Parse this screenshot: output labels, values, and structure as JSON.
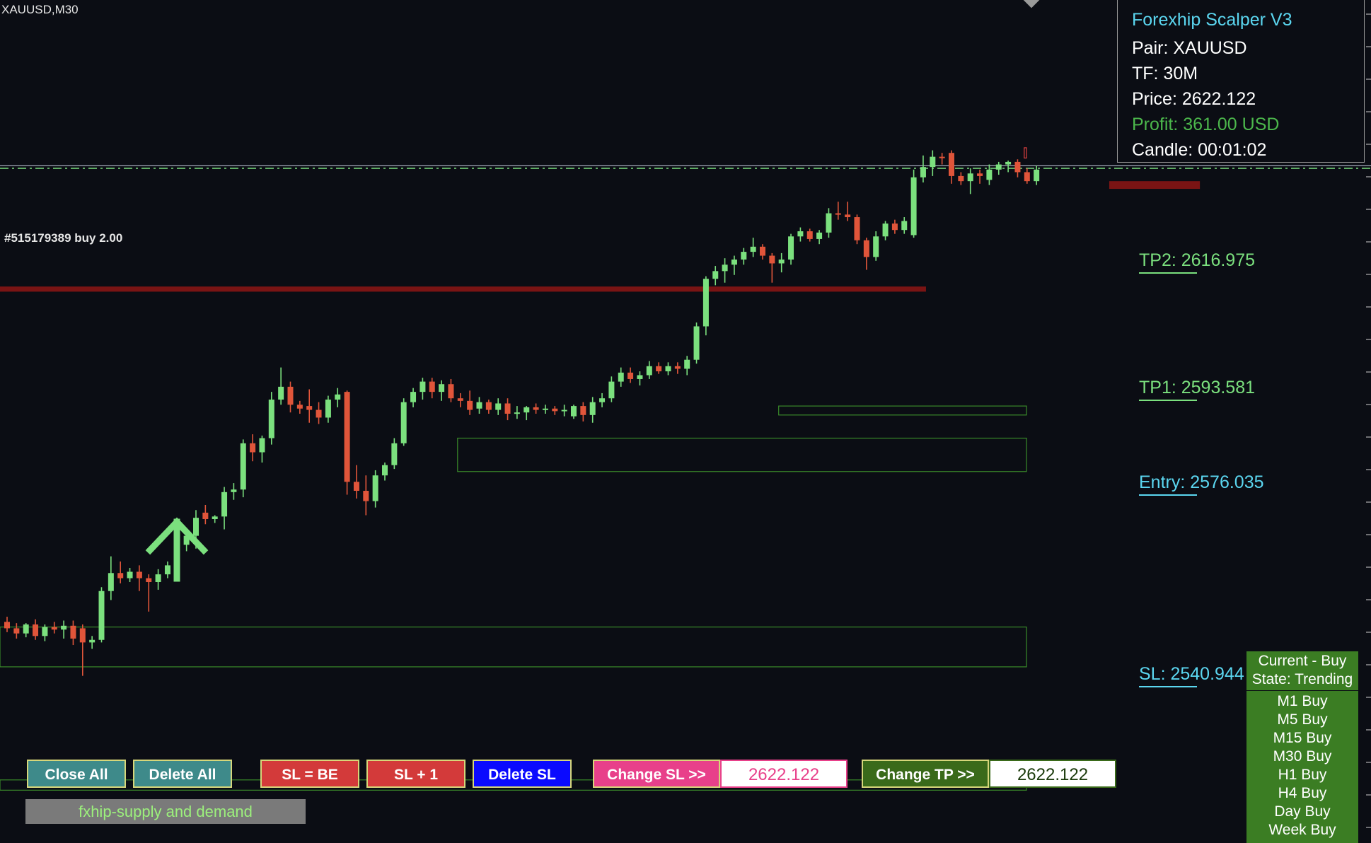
{
  "chart": {
    "symbol": "XAUUSD,M30",
    "order_label": "#515179389 buy 2.00"
  },
  "colors": {
    "background": "#0b0d14",
    "bull_candle": "#7be07e",
    "bear_candle": "#e0553a",
    "zone_green": "#3a8a2a",
    "zone_red": "#e04040",
    "supply_bar": "#7a1414",
    "entry_line": "#c9cfe0",
    "tp_line": "#7be07e",
    "cyan": "#5bd6f0",
    "green_text": "#7be07e",
    "profit_green": "#4cb84c"
  },
  "icons": {
    "buy_arrow": "up-arrow-icon"
  },
  "info_panel": {
    "title": "Forexhip Scalper V3",
    "pair": "Pair: XAUUSD",
    "timeframe": "TF: 30M",
    "price": "Price: 2622.122",
    "profit": "Profit: 361.00 USD",
    "candle": "Candle: 00:01:02"
  },
  "levels": {
    "tp2": "TP2: 2616.975",
    "tp1": "TP1: 2593.581",
    "entry": "Entry: 2576.035",
    "sl": "SL: 2540.944"
  },
  "signal": {
    "current": "Current - Buy",
    "state": "State: Trending",
    "timeframes": [
      "M1 Buy",
      "M5 Buy",
      "M15 Buy",
      "M30 Buy",
      "H1 Buy",
      "H4 Buy",
      "Day Buy",
      "Week Buy"
    ]
  },
  "buttons": {
    "close_all": "Close All",
    "delete_all": "Delete All",
    "sl_be": "SL = BE",
    "sl_plus_one": "SL + 1",
    "delete_sl": "Delete SL",
    "change_sl": "Change SL >>",
    "change_sl_value": "2622.122",
    "change_tp": "Change TP >>",
    "change_tp_value": "2622.122"
  },
  "indicator": {
    "label": "fxhip-supply and demand"
  },
  "candles": [
    {
      "o": 2546.2,
      "h": 2547.0,
      "l": 2544.6,
      "c": 2545.2
    },
    {
      "o": 2545.2,
      "h": 2546.0,
      "l": 2543.6,
      "c": 2544.4
    },
    {
      "o": 2544.4,
      "h": 2546.0,
      "l": 2543.8,
      "c": 2545.8
    },
    {
      "o": 2545.8,
      "h": 2546.6,
      "l": 2543.4,
      "c": 2544.0
    },
    {
      "o": 2544.0,
      "h": 2545.8,
      "l": 2543.2,
      "c": 2545.4
    },
    {
      "o": 2545.4,
      "h": 2546.2,
      "l": 2544.4,
      "c": 2545.0
    },
    {
      "o": 2545.0,
      "h": 2546.4,
      "l": 2543.6,
      "c": 2545.6
    },
    {
      "o": 2545.6,
      "h": 2546.4,
      "l": 2542.6,
      "c": 2543.6
    },
    {
      "o": 2545.2,
      "h": 2545.8,
      "l": 2537.8,
      "c": 2543.0
    },
    {
      "o": 2543.0,
      "h": 2544.0,
      "l": 2542.0,
      "c": 2543.4
    },
    {
      "o": 2543.4,
      "h": 2551.6,
      "l": 2543.0,
      "c": 2551.0
    },
    {
      "o": 2551.0,
      "h": 2556.4,
      "l": 2549.6,
      "c": 2553.8
    },
    {
      "o": 2553.8,
      "h": 2555.6,
      "l": 2552.2,
      "c": 2553.0
    },
    {
      "o": 2553.0,
      "h": 2554.6,
      "l": 2552.4,
      "c": 2554.0
    },
    {
      "o": 2554.0,
      "h": 2555.0,
      "l": 2551.0,
      "c": 2553.0
    },
    {
      "o": 2553.0,
      "h": 2553.6,
      "l": 2547.8,
      "c": 2552.4
    },
    {
      "o": 2552.4,
      "h": 2554.4,
      "l": 2551.2,
      "c": 2553.6
    },
    {
      "o": 2553.6,
      "h": 2555.6,
      "l": 2553.0,
      "c": 2555.0
    },
    {
      "o": 2555.0,
      "h": 2559.2,
      "l": 2554.0,
      "c": 2558.2
    },
    {
      "o": 2558.2,
      "h": 2560.6,
      "l": 2557.2,
      "c": 2559.6
    },
    {
      "o": 2559.6,
      "h": 2563.6,
      "l": 2557.6,
      "c": 2562.4
    },
    {
      "o": 2563.2,
      "h": 2564.4,
      "l": 2561.4,
      "c": 2562.2
    },
    {
      "o": 2562.2,
      "h": 2562.8,
      "l": 2561.6,
      "c": 2562.6
    },
    {
      "o": 2562.6,
      "h": 2567.2,
      "l": 2560.6,
      "c": 2566.4
    },
    {
      "o": 2566.4,
      "h": 2567.8,
      "l": 2565.2,
      "c": 2566.8
    },
    {
      "o": 2566.8,
      "h": 2574.6,
      "l": 2565.6,
      "c": 2574.0
    },
    {
      "o": 2574.0,
      "h": 2575.4,
      "l": 2571.2,
      "c": 2572.6
    },
    {
      "o": 2572.6,
      "h": 2575.2,
      "l": 2571.0,
      "c": 2574.8
    },
    {
      "o": 2574.8,
      "h": 2582.0,
      "l": 2573.8,
      "c": 2580.8
    },
    {
      "o": 2580.8,
      "h": 2585.8,
      "l": 2580.0,
      "c": 2582.8
    },
    {
      "o": 2582.8,
      "h": 2583.6,
      "l": 2578.8,
      "c": 2580.0
    },
    {
      "o": 2580.0,
      "h": 2580.6,
      "l": 2578.6,
      "c": 2579.4
    },
    {
      "o": 2579.8,
      "h": 2582.4,
      "l": 2577.2,
      "c": 2579.2
    },
    {
      "o": 2579.2,
      "h": 2580.4,
      "l": 2577.0,
      "c": 2578.0
    },
    {
      "o": 2578.0,
      "h": 2581.4,
      "l": 2577.2,
      "c": 2580.8
    },
    {
      "o": 2580.8,
      "h": 2582.6,
      "l": 2579.6,
      "c": 2581.6
    },
    {
      "o": 2582.0,
      "h": 2582.2,
      "l": 2566.0,
      "c": 2568.0
    },
    {
      "o": 2568.0,
      "h": 2570.6,
      "l": 2565.4,
      "c": 2566.6
    },
    {
      "o": 2566.6,
      "h": 2569.0,
      "l": 2562.8,
      "c": 2565.0
    },
    {
      "o": 2565.0,
      "h": 2569.8,
      "l": 2564.0,
      "c": 2569.0
    },
    {
      "o": 2569.0,
      "h": 2571.0,
      "l": 2568.2,
      "c": 2570.6
    },
    {
      "o": 2570.6,
      "h": 2574.8,
      "l": 2570.0,
      "c": 2574.0
    },
    {
      "o": 2574.0,
      "h": 2581.0,
      "l": 2573.6,
      "c": 2580.4
    },
    {
      "o": 2580.4,
      "h": 2582.6,
      "l": 2579.6,
      "c": 2582.0
    },
    {
      "o": 2582.0,
      "h": 2584.2,
      "l": 2580.8,
      "c": 2583.6
    },
    {
      "o": 2583.6,
      "h": 2584.2,
      "l": 2581.0,
      "c": 2582.0
    },
    {
      "o": 2582.0,
      "h": 2583.8,
      "l": 2580.6,
      "c": 2583.2
    },
    {
      "o": 2583.2,
      "h": 2584.0,
      "l": 2580.4,
      "c": 2581.0
    },
    {
      "o": 2581.0,
      "h": 2581.8,
      "l": 2579.6,
      "c": 2580.6
    },
    {
      "o": 2580.6,
      "h": 2582.2,
      "l": 2578.4,
      "c": 2579.2
    },
    {
      "o": 2579.4,
      "h": 2581.2,
      "l": 2578.6,
      "c": 2580.4
    },
    {
      "o": 2580.4,
      "h": 2580.8,
      "l": 2578.6,
      "c": 2579.2
    },
    {
      "o": 2579.2,
      "h": 2581.0,
      "l": 2578.4,
      "c": 2580.2
    },
    {
      "o": 2580.2,
      "h": 2581.0,
      "l": 2577.6,
      "c": 2578.6
    },
    {
      "o": 2578.6,
      "h": 2579.8,
      "l": 2577.8,
      "c": 2578.8
    },
    {
      "o": 2578.8,
      "h": 2579.8,
      "l": 2577.6,
      "c": 2579.6
    },
    {
      "o": 2579.6,
      "h": 2580.2,
      "l": 2578.6,
      "c": 2579.2
    },
    {
      "o": 2579.2,
      "h": 2580.0,
      "l": 2578.6,
      "c": 2579.4
    },
    {
      "o": 2579.4,
      "h": 2579.8,
      "l": 2578.4,
      "c": 2579.0
    },
    {
      "o": 2579.0,
      "h": 2580.0,
      "l": 2578.2,
      "c": 2579.2
    },
    {
      "o": 2578.2,
      "h": 2580.0,
      "l": 2577.8,
      "c": 2579.8
    },
    {
      "o": 2579.8,
      "h": 2580.4,
      "l": 2577.4,
      "c": 2578.4
    },
    {
      "o": 2578.4,
      "h": 2581.2,
      "l": 2577.2,
      "c": 2580.4
    },
    {
      "o": 2580.4,
      "h": 2581.8,
      "l": 2579.6,
      "c": 2581.0
    },
    {
      "o": 2581.0,
      "h": 2584.4,
      "l": 2580.4,
      "c": 2583.6
    },
    {
      "o": 2583.6,
      "h": 2585.8,
      "l": 2582.8,
      "c": 2585.0
    },
    {
      "o": 2585.0,
      "h": 2585.8,
      "l": 2583.4,
      "c": 2584.0
    },
    {
      "o": 2584.0,
      "h": 2585.2,
      "l": 2583.0,
      "c": 2584.6
    },
    {
      "o": 2584.6,
      "h": 2586.8,
      "l": 2584.0,
      "c": 2586.0
    },
    {
      "o": 2586.0,
      "h": 2586.6,
      "l": 2584.8,
      "c": 2585.2
    },
    {
      "o": 2585.2,
      "h": 2586.6,
      "l": 2584.6,
      "c": 2586.0
    },
    {
      "o": 2586.0,
      "h": 2586.6,
      "l": 2584.8,
      "c": 2585.6
    },
    {
      "o": 2585.6,
      "h": 2587.6,
      "l": 2584.6,
      "c": 2587.0
    },
    {
      "o": 2587.0,
      "h": 2592.8,
      "l": 2586.4,
      "c": 2592.2
    },
    {
      "o": 2592.2,
      "h": 2600.0,
      "l": 2590.8,
      "c": 2599.6
    },
    {
      "o": 2599.6,
      "h": 2601.6,
      "l": 2598.6,
      "c": 2600.8
    },
    {
      "o": 2600.8,
      "h": 2602.8,
      "l": 2599.0,
      "c": 2601.8
    },
    {
      "o": 2601.8,
      "h": 2603.2,
      "l": 2600.2,
      "c": 2602.6
    },
    {
      "o": 2602.6,
      "h": 2604.4,
      "l": 2601.8,
      "c": 2603.8
    },
    {
      "o": 2603.8,
      "h": 2606.0,
      "l": 2603.0,
      "c": 2604.6
    },
    {
      "o": 2604.6,
      "h": 2605.0,
      "l": 2602.6,
      "c": 2603.2
    },
    {
      "o": 2603.2,
      "h": 2603.6,
      "l": 2599.0,
      "c": 2602.0
    },
    {
      "o": 2602.0,
      "h": 2603.6,
      "l": 2600.6,
      "c": 2602.6
    },
    {
      "o": 2602.6,
      "h": 2606.6,
      "l": 2601.8,
      "c": 2606.2
    },
    {
      "o": 2606.2,
      "h": 2607.6,
      "l": 2605.4,
      "c": 2607.0
    },
    {
      "o": 2607.0,
      "h": 2607.4,
      "l": 2605.4,
      "c": 2605.8
    },
    {
      "o": 2605.8,
      "h": 2607.2,
      "l": 2605.0,
      "c": 2606.8
    },
    {
      "o": 2606.8,
      "h": 2610.6,
      "l": 2606.0,
      "c": 2609.8
    },
    {
      "o": 2609.8,
      "h": 2611.6,
      "l": 2608.8,
      "c": 2609.6
    },
    {
      "o": 2609.6,
      "h": 2611.6,
      "l": 2608.6,
      "c": 2609.2
    },
    {
      "o": 2609.2,
      "h": 2609.6,
      "l": 2605.0,
      "c": 2605.6
    },
    {
      "o": 2605.6,
      "h": 2606.0,
      "l": 2601.0,
      "c": 2603.0
    },
    {
      "o": 2603.0,
      "h": 2607.0,
      "l": 2602.4,
      "c": 2606.2
    },
    {
      "o": 2606.2,
      "h": 2608.6,
      "l": 2605.6,
      "c": 2608.2
    },
    {
      "o": 2608.2,
      "h": 2608.8,
      "l": 2606.6,
      "c": 2607.2
    },
    {
      "o": 2607.2,
      "h": 2609.2,
      "l": 2606.6,
      "c": 2608.6
    },
    {
      "o": 2606.4,
      "h": 2616.6,
      "l": 2606.0,
      "c": 2615.4
    },
    {
      "o": 2615.4,
      "h": 2618.8,
      "l": 2614.6,
      "c": 2617.0
    },
    {
      "o": 2617.0,
      "h": 2619.6,
      "l": 2615.6,
      "c": 2618.6
    },
    {
      "o": 2618.6,
      "h": 2619.2,
      "l": 2617.4,
      "c": 2618.4
    },
    {
      "o": 2619.2,
      "h": 2619.6,
      "l": 2614.4,
      "c": 2615.6
    },
    {
      "o": 2615.6,
      "h": 2616.2,
      "l": 2614.2,
      "c": 2614.8
    },
    {
      "o": 2614.8,
      "h": 2616.8,
      "l": 2612.8,
      "c": 2616.0
    },
    {
      "o": 2616.0,
      "h": 2616.6,
      "l": 2614.4,
      "c": 2615.6
    },
    {
      "o": 2615.0,
      "h": 2617.4,
      "l": 2614.2,
      "c": 2616.6
    },
    {
      "o": 2616.6,
      "h": 2617.8,
      "l": 2615.8,
      "c": 2617.4
    },
    {
      "o": 2617.4,
      "h": 2618.0,
      "l": 2616.2,
      "c": 2617.8
    },
    {
      "o": 2617.8,
      "h": 2618.2,
      "l": 2615.4,
      "c": 2616.2
    },
    {
      "o": 2616.2,
      "h": 2616.8,
      "l": 2614.4,
      "c": 2614.8
    },
    {
      "o": 2614.8,
      "h": 2617.2,
      "l": 2614.2,
      "c": 2616.6
    }
  ],
  "zones": [
    {
      "kind": "demand",
      "start": 82,
      "end": 119,
      "top": 2579.8,
      "bottom": 2578.4
    },
    {
      "kind": "demand",
      "start": 48,
      "end": 119,
      "top": 2574.8,
      "bottom": 2569.6
    },
    {
      "kind": "demand",
      "start": 0,
      "end": 119,
      "top": 2545.4,
      "bottom": 2539.2
    },
    {
      "kind": "demand",
      "start": 0,
      "end": 119,
      "top": 2521.6,
      "bottom": 2520.0
    },
    {
      "kind": "supply",
      "start": 108,
      "end": 119,
      "top": 2620.0,
      "bottom": 2618.4
    }
  ],
  "supply_bars": [
    {
      "start": 0,
      "end": 97,
      "top": 2598.4,
      "bottom": 2597.6
    },
    {
      "start": 117,
      "end": 126,
      "top": 2614.8,
      "bottom": 2613.6
    }
  ],
  "price_lines": {
    "current": 2617.2,
    "tp": 2616.8
  },
  "axis": {
    "ymin": 2512.0,
    "ymax": 2643.0
  }
}
